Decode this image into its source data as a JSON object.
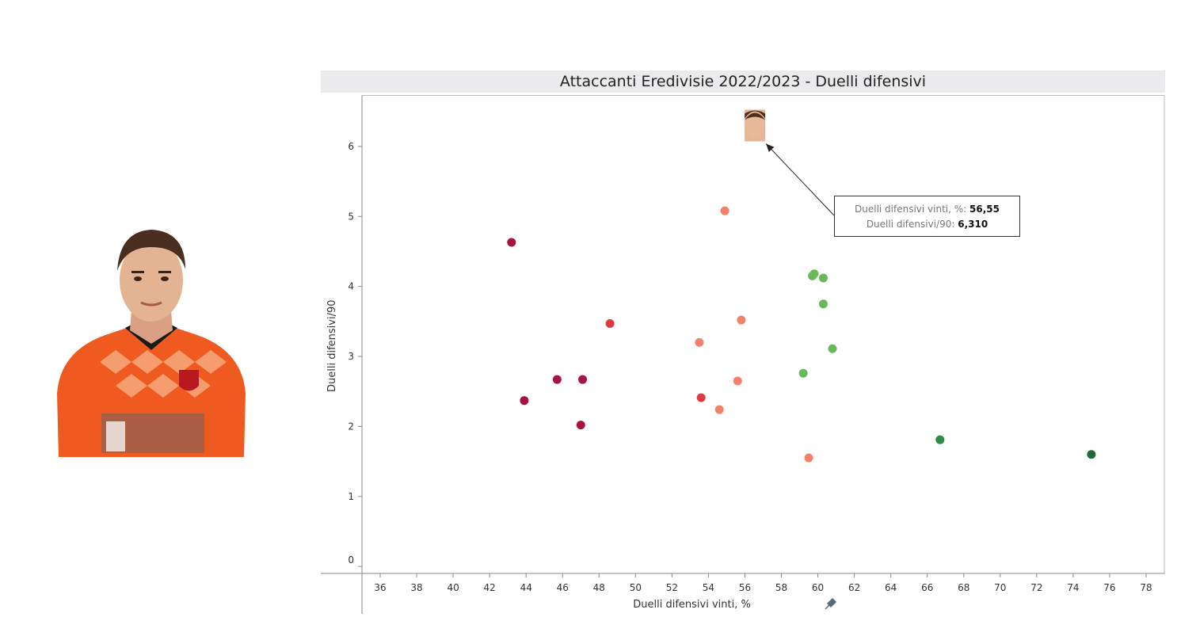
{
  "chart_data": {
    "type": "scatter",
    "title": "Attaccanti Eredivisie 2022/2023 - Duelli difensivi",
    "xlabel": "Duelli difensivi vinti, %",
    "ylabel": "Duelli difensivi/90",
    "xlim": [
      35,
      79
    ],
    "ylim": [
      -0.1,
      6.7
    ],
    "x_ticks": [
      36,
      38,
      40,
      42,
      44,
      46,
      48,
      50,
      52,
      54,
      56,
      58,
      60,
      62,
      64,
      66,
      68,
      70,
      72,
      74,
      76,
      78
    ],
    "y_ticks": [
      0,
      1,
      2,
      3,
      4,
      5,
      6
    ],
    "grid": false,
    "points": [
      {
        "x": 43.2,
        "y": 4.63,
        "color": "#a8123e"
      },
      {
        "x": 43.9,
        "y": 2.37,
        "color": "#a8123e"
      },
      {
        "x": 45.7,
        "y": 2.67,
        "color": "#a8123e"
      },
      {
        "x": 47.1,
        "y": 2.67,
        "color": "#a8123e"
      },
      {
        "x": 47.0,
        "y": 2.02,
        "color": "#a8123e"
      },
      {
        "x": 48.6,
        "y": 3.47,
        "color": "#e0393e"
      },
      {
        "x": 53.6,
        "y": 2.41,
        "color": "#e0393e"
      },
      {
        "x": 53.5,
        "y": 3.2,
        "color": "#f4826a"
      },
      {
        "x": 54.6,
        "y": 2.24,
        "color": "#f4826a"
      },
      {
        "x": 54.9,
        "y": 5.08,
        "color": "#f4826a"
      },
      {
        "x": 55.6,
        "y": 2.65,
        "color": "#f4826a"
      },
      {
        "x": 55.8,
        "y": 3.52,
        "color": "#f4826a"
      },
      {
        "x": 59.5,
        "y": 1.55,
        "color": "#f4826a"
      },
      {
        "x": 59.7,
        "y": 4.15,
        "color": "#69b85a"
      },
      {
        "x": 59.8,
        "y": 4.18,
        "color": "#69b85a"
      },
      {
        "x": 60.3,
        "y": 4.12,
        "color": "#69b85a"
      },
      {
        "x": 60.3,
        "y": 3.75,
        "color": "#69b85a"
      },
      {
        "x": 60.8,
        "y": 3.11,
        "color": "#69b85a"
      },
      {
        "x": 59.2,
        "y": 2.76,
        "color": "#69b85a"
      },
      {
        "x": 66.7,
        "y": 1.81,
        "color": "#2e8b47"
      },
      {
        "x": 75.0,
        "y": 1.6,
        "color": "#1e6b3a"
      }
    ],
    "highlight": {
      "x": 56.55,
      "y": 6.31,
      "x_label": "Duelli difensivi vinti, %: ",
      "x_value": "56,55",
      "y_label": "Duelli difensivi/90: ",
      "y_value": "6,310"
    }
  },
  "icons": {
    "axis_pin": "pin-icon"
  }
}
